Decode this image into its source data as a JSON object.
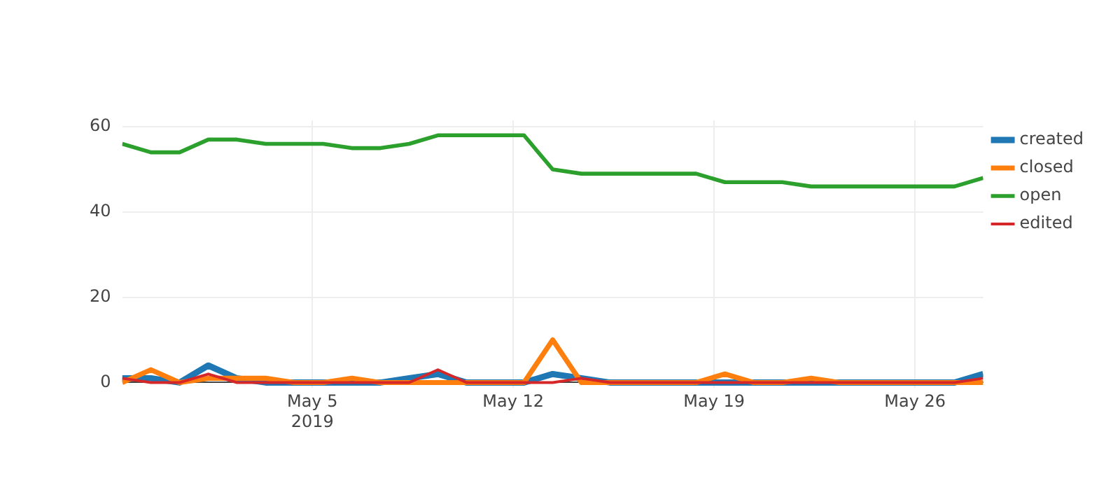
{
  "chart_data": {
    "type": "line",
    "x": [
      "2019-04-28T09:00",
      "2019-04-29T09:00",
      "2019-04-30T09:00",
      "2019-05-01T09:00",
      "2019-05-02T09:00",
      "2019-05-03T09:00",
      "2019-05-04T09:00",
      "2019-05-05T09:00",
      "2019-05-06T09:00",
      "2019-05-07T09:00",
      "2019-05-08T09:00",
      "2019-05-09T09:00",
      "2019-05-10T09:00",
      "2019-05-11T09:00",
      "2019-05-12T09:00",
      "2019-05-13T09:00",
      "2019-05-14T09:00",
      "2019-05-15T09:00",
      "2019-05-16T09:00",
      "2019-05-17T09:00",
      "2019-05-18T09:00",
      "2019-05-19T09:00",
      "2019-05-20T09:00",
      "2019-05-21T09:00",
      "2019-05-22T09:00",
      "2019-05-23T09:00",
      "2019-05-24T09:00",
      "2019-05-25T09:00",
      "2019-05-26T09:00",
      "2019-05-27T09:00",
      "2019-05-28T09:00"
    ],
    "series": [
      {
        "name": "created",
        "color": "#1f77b4",
        "values": [
          1,
          1,
          0,
          4,
          1,
          0,
          0,
          0,
          0,
          0,
          1,
          2,
          0,
          0,
          0,
          2,
          1,
          0,
          0,
          0,
          0,
          0,
          0,
          0,
          0,
          0,
          0,
          0,
          0,
          0,
          2
        ]
      },
      {
        "name": "closed",
        "color": "#ff7f0e",
        "values": [
          0,
          3,
          0,
          1,
          1,
          1,
          0,
          0,
          1,
          0,
          0,
          0,
          0,
          0,
          0,
          10,
          0,
          0,
          0,
          0,
          0,
          2,
          0,
          0,
          1,
          0,
          0,
          0,
          0,
          0,
          0
        ]
      },
      {
        "name": "open",
        "color": "#2ca02c",
        "values": [
          56,
          54,
          54,
          57,
          57,
          56,
          56,
          56,
          55,
          55,
          56,
          58,
          58,
          58,
          58,
          50,
          49,
          49,
          49,
          49,
          49,
          47,
          47,
          47,
          46,
          46,
          46,
          46,
          46,
          46,
          48
        ]
      },
      {
        "name": "edited",
        "color": "#d62728",
        "values": [
          1,
          0,
          0,
          2,
          0,
          0,
          0,
          0,
          0,
          0,
          0,
          3,
          0,
          0,
          0,
          0,
          1,
          0,
          0,
          0,
          0,
          0,
          0,
          0,
          0,
          0,
          0,
          0,
          0,
          0,
          1
        ]
      }
    ],
    "xlim": [
      "2019-04-28T09:00",
      "2019-05-28T09:00"
    ],
    "xticks": [
      {
        "value": "2019-05-05",
        "label": "May 5\n2019"
      },
      {
        "value": "2019-05-12",
        "label": "May 12"
      },
      {
        "value": "2019-05-19",
        "label": "May 19"
      },
      {
        "value": "2019-05-26",
        "label": "May 26"
      }
    ],
    "ylim": [
      -1.3,
      61.5
    ],
    "yticks": [
      0,
      20,
      40,
      60
    ],
    "grid": true,
    "legend": "top right",
    "marker": "none",
    "line_style": "solid"
  }
}
